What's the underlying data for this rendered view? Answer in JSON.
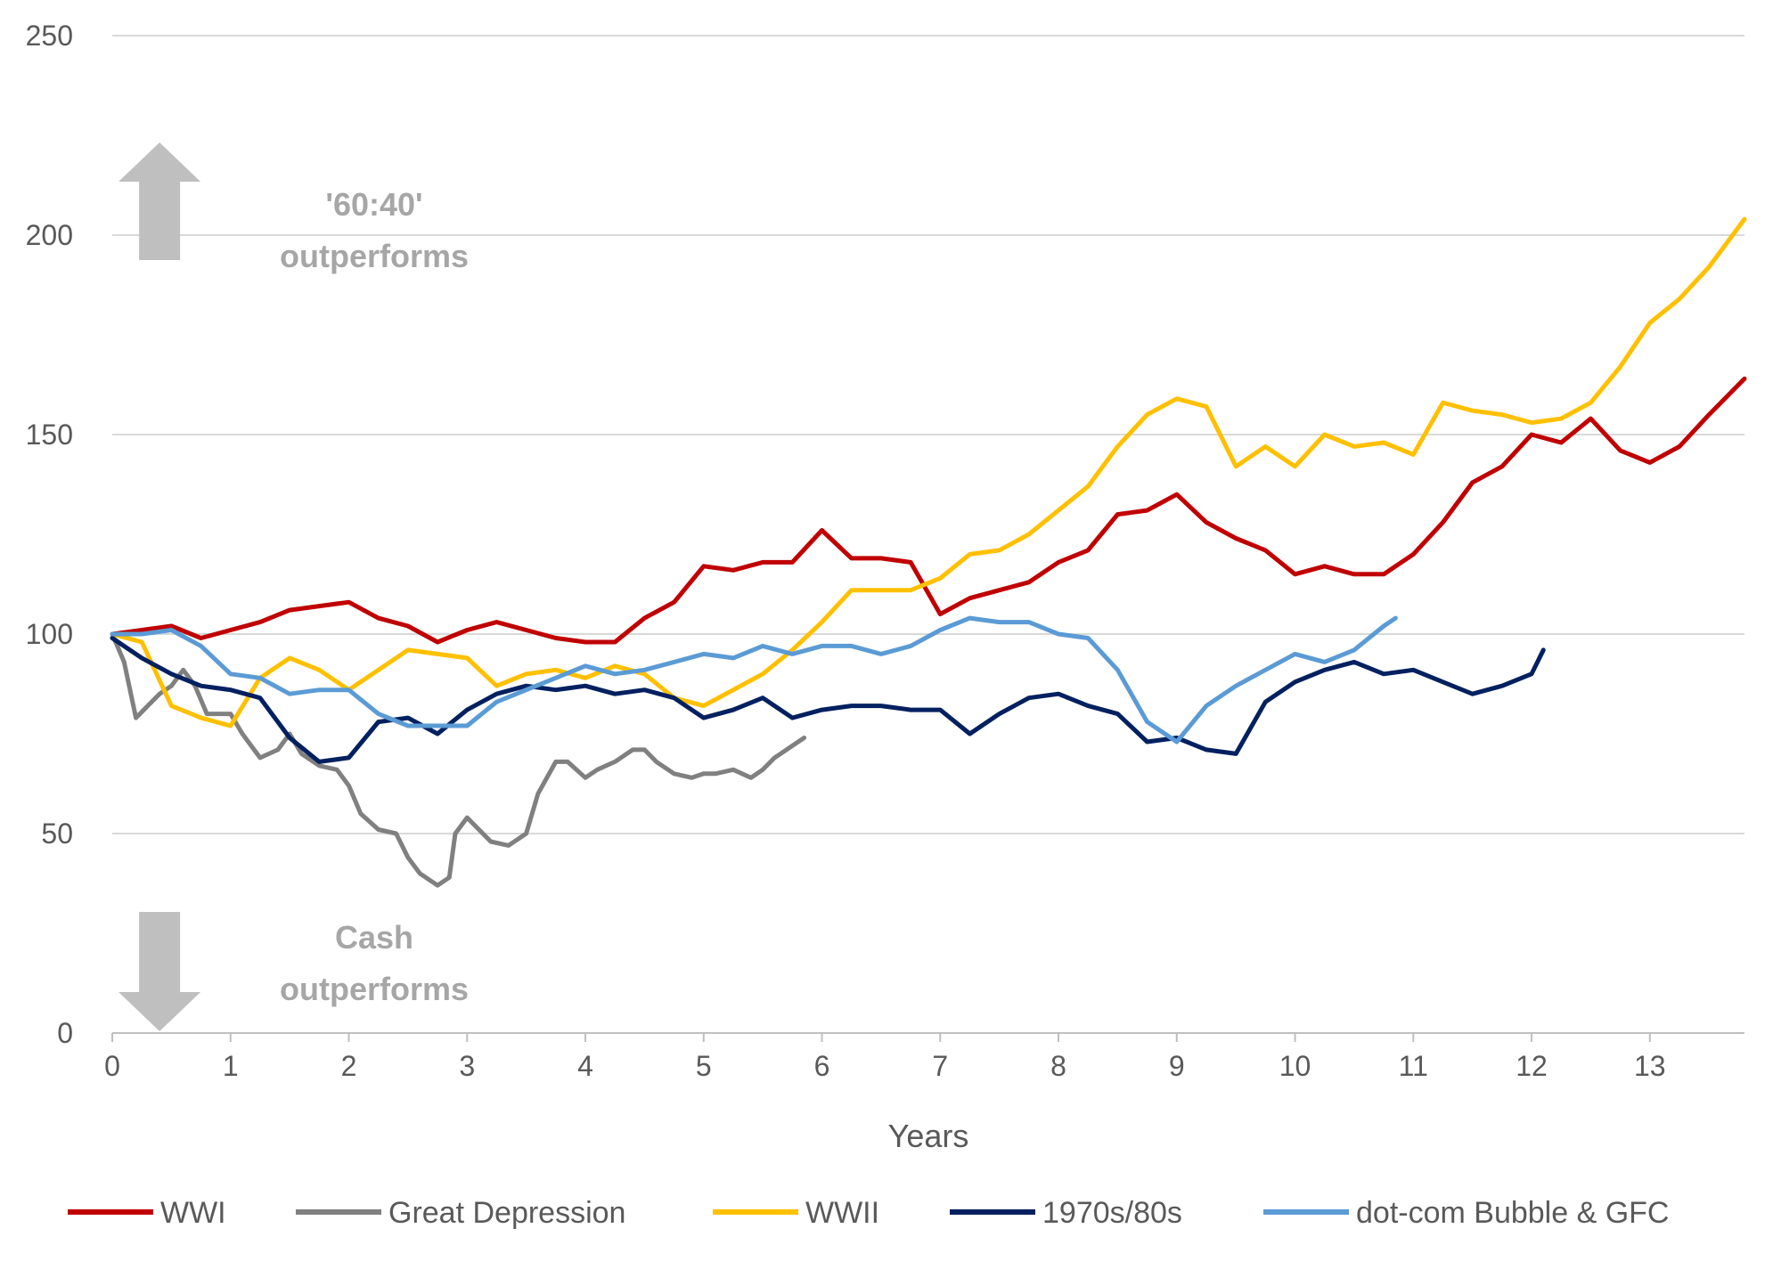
{
  "chart_data": {
    "type": "line",
    "xlabel": "Years",
    "ylabel": "",
    "xlim": [
      0,
      13.8
    ],
    "ylim": [
      0,
      250
    ],
    "x_ticks": [
      0,
      1,
      2,
      3,
      4,
      5,
      6,
      7,
      8,
      9,
      10,
      11,
      12,
      13
    ],
    "y_ticks": [
      0,
      50,
      100,
      150,
      200,
      250
    ],
    "grid": "horizontal",
    "legend_position": "bottom",
    "annotations": [
      {
        "text_line1": "'60:40'",
        "text_line2": "outperforms",
        "arrow": "up",
        "x": 0.4,
        "y": 200
      },
      {
        "text_line1": "Cash",
        "text_line2": "outperforms",
        "arrow": "down",
        "x": 0.4,
        "y": 22
      }
    ],
    "series": [
      {
        "name": "WWI",
        "color": "#C00000",
        "x": [
          0,
          0.25,
          0.5,
          0.75,
          1,
          1.25,
          1.5,
          1.75,
          2,
          2.25,
          2.5,
          2.75,
          3,
          3.25,
          3.5,
          3.75,
          4,
          4.25,
          4.5,
          4.75,
          5,
          5.25,
          5.5,
          5.75,
          6,
          6.25,
          6.5,
          6.75,
          7,
          7.25,
          7.5,
          7.75,
          8,
          8.25,
          8.5,
          8.75,
          9,
          9.25,
          9.5,
          9.75,
          10,
          10.25,
          10.5,
          10.75,
          11,
          11.25,
          11.5,
          11.75,
          12,
          12.25,
          12.5,
          12.75,
          13,
          13.25,
          13.5,
          13.8
        ],
        "y": [
          100,
          101,
          102,
          99,
          101,
          103,
          106,
          107,
          108,
          104,
          102,
          98,
          101,
          103,
          101,
          99,
          98,
          98,
          104,
          108,
          117,
          116,
          118,
          118,
          126,
          119,
          119,
          118,
          105,
          109,
          111,
          113,
          118,
          121,
          130,
          131,
          135,
          128,
          124,
          121,
          115,
          117,
          115,
          115,
          120,
          128,
          138,
          142,
          150,
          148,
          154,
          146,
          143,
          147,
          155,
          164
        ]
      },
      {
        "name": "Great Depression",
        "color": "#808080",
        "x": [
          0,
          0.1,
          0.2,
          0.3,
          0.4,
          0.5,
          0.6,
          0.7,
          0.8,
          0.9,
          1,
          1.1,
          1.25,
          1.4,
          1.5,
          1.6,
          1.75,
          1.9,
          2,
          2.1,
          2.25,
          2.4,
          2.5,
          2.6,
          2.75,
          2.85,
          2.9,
          3,
          3.1,
          3.2,
          3.35,
          3.5,
          3.6,
          3.75,
          3.85,
          4,
          4.1,
          4.25,
          4.4,
          4.5,
          4.6,
          4.75,
          4.9,
          5,
          5.1,
          5.25,
          5.4,
          5.5,
          5.6,
          5.75,
          5.85
        ],
        "y": [
          100,
          93,
          79,
          82,
          85,
          87,
          91,
          87,
          80,
          80,
          80,
          75,
          69,
          71,
          75,
          70,
          67,
          66,
          62,
          55,
          51,
          50,
          44,
          40,
          37,
          39,
          50,
          54,
          51,
          48,
          47,
          50,
          60,
          68,
          68,
          64,
          66,
          68,
          71,
          71,
          68,
          65,
          64,
          65,
          65,
          66,
          64,
          66,
          69,
          72,
          74
        ]
      },
      {
        "name": "WWII",
        "color": "#FFC000",
        "x": [
          0,
          0.25,
          0.5,
          0.75,
          1,
          1.25,
          1.5,
          1.75,
          2,
          2.25,
          2.5,
          2.75,
          3,
          3.25,
          3.5,
          3.75,
          4,
          4.25,
          4.5,
          4.75,
          5,
          5.25,
          5.5,
          5.75,
          6,
          6.25,
          6.5,
          6.75,
          7,
          7.25,
          7.5,
          7.75,
          8,
          8.25,
          8.5,
          8.75,
          9,
          9.25,
          9.5,
          9.75,
          10,
          10.25,
          10.5,
          10.75,
          11,
          11.25,
          11.5,
          11.75,
          12,
          12.25,
          12.5,
          12.75,
          13,
          13.25,
          13.5,
          13.8
        ],
        "y": [
          100,
          98,
          82,
          79,
          77,
          89,
          94,
          91,
          86,
          91,
          96,
          95,
          94,
          87,
          90,
          91,
          89,
          92,
          90,
          84,
          82,
          86,
          90,
          96,
          103,
          111,
          111,
          111,
          114,
          120,
          121,
          125,
          131,
          137,
          147,
          155,
          159,
          157,
          142,
          147,
          142,
          150,
          147,
          148,
          145,
          158,
          156,
          155,
          153,
          154,
          158,
          167,
          178,
          184,
          192,
          204
        ]
      },
      {
        "name": "1970s/80s",
        "color": "#002060",
        "x": [
          0,
          0.25,
          0.5,
          0.75,
          1,
          1.25,
          1.5,
          1.75,
          2,
          2.25,
          2.5,
          2.75,
          3,
          3.25,
          3.5,
          3.75,
          4,
          4.25,
          4.5,
          4.75,
          5,
          5.25,
          5.5,
          5.75,
          6,
          6.25,
          6.5,
          6.75,
          7,
          7.25,
          7.5,
          7.75,
          8,
          8.25,
          8.5,
          8.75,
          9,
          9.25,
          9.5,
          9.75,
          10,
          10.25,
          10.5,
          10.75,
          11,
          11.25,
          11.5,
          11.75,
          12,
          12.1
        ],
        "y": [
          99,
          94,
          90,
          87,
          86,
          84,
          74,
          68,
          69,
          78,
          79,
          75,
          81,
          85,
          87,
          86,
          87,
          85,
          86,
          84,
          79,
          81,
          84,
          79,
          81,
          82,
          82,
          81,
          81,
          75,
          80,
          84,
          85,
          82,
          80,
          73,
          74,
          71,
          70,
          83,
          88,
          91,
          93,
          90,
          91,
          88,
          85,
          87,
          90,
          96
        ]
      },
      {
        "name": "dot-com Bubble & GFC",
        "color": "#5B9BD5",
        "x": [
          0,
          0.25,
          0.5,
          0.75,
          1,
          1.25,
          1.5,
          1.75,
          2,
          2.25,
          2.5,
          2.75,
          3,
          3.25,
          3.5,
          3.75,
          4,
          4.25,
          4.5,
          4.75,
          5,
          5.25,
          5.5,
          5.75,
          6,
          6.25,
          6.5,
          6.75,
          7,
          7.25,
          7.5,
          7.75,
          8,
          8.25,
          8.5,
          8.75,
          9,
          9.25,
          9.5,
          9.75,
          10,
          10.25,
          10.5,
          10.75,
          10.85
        ],
        "y": [
          100,
          100,
          101,
          97,
          90,
          89,
          85,
          86,
          86,
          80,
          77,
          77,
          77,
          83,
          86,
          89,
          92,
          90,
          91,
          93,
          95,
          94,
          97,
          95,
          97,
          97,
          95,
          97,
          101,
          104,
          103,
          103,
          100,
          99,
          91,
          78,
          73,
          82,
          87,
          91,
          95,
          93,
          96,
          102,
          104
        ]
      }
    ]
  }
}
